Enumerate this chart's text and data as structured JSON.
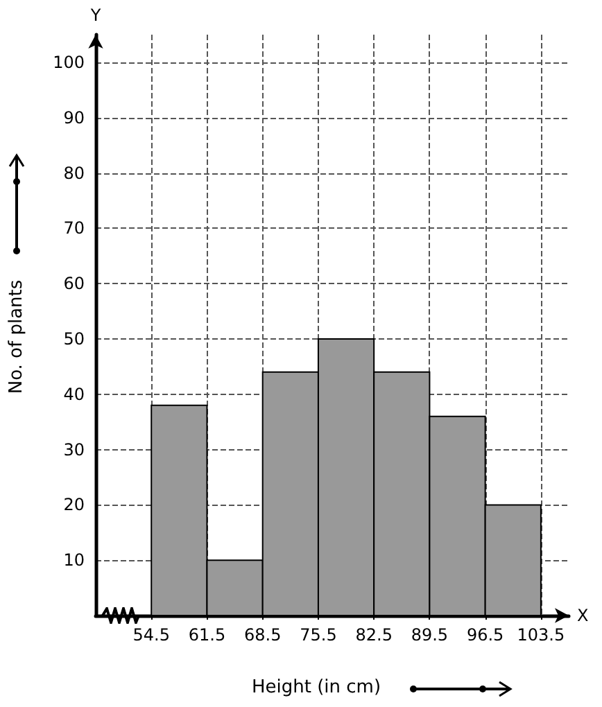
{
  "chart_data": {
    "type": "histogram",
    "xlabel": "Height (in cm)",
    "ylabel": "No. of plants",
    "bins": [
      54.5,
      61.5,
      68.5,
      75.5,
      82.5,
      89.5,
      96.5,
      103.5
    ],
    "values": [
      38,
      10,
      44,
      50,
      44,
      36,
      20
    ],
    "color": "#999999",
    "xlim": [
      47.5,
      107
    ],
    "xticks": [
      54.5,
      61.5,
      68.5,
      75.5,
      82.5,
      89.5,
      96.5,
      103.5
    ],
    "ylim": [
      0,
      105
    ],
    "yticks": [
      10,
      20,
      30,
      40,
      50,
      60,
      70,
      80,
      90,
      100
    ],
    "annotations": [
      "X",
      "Y"
    ],
    "grid": true
  }
}
